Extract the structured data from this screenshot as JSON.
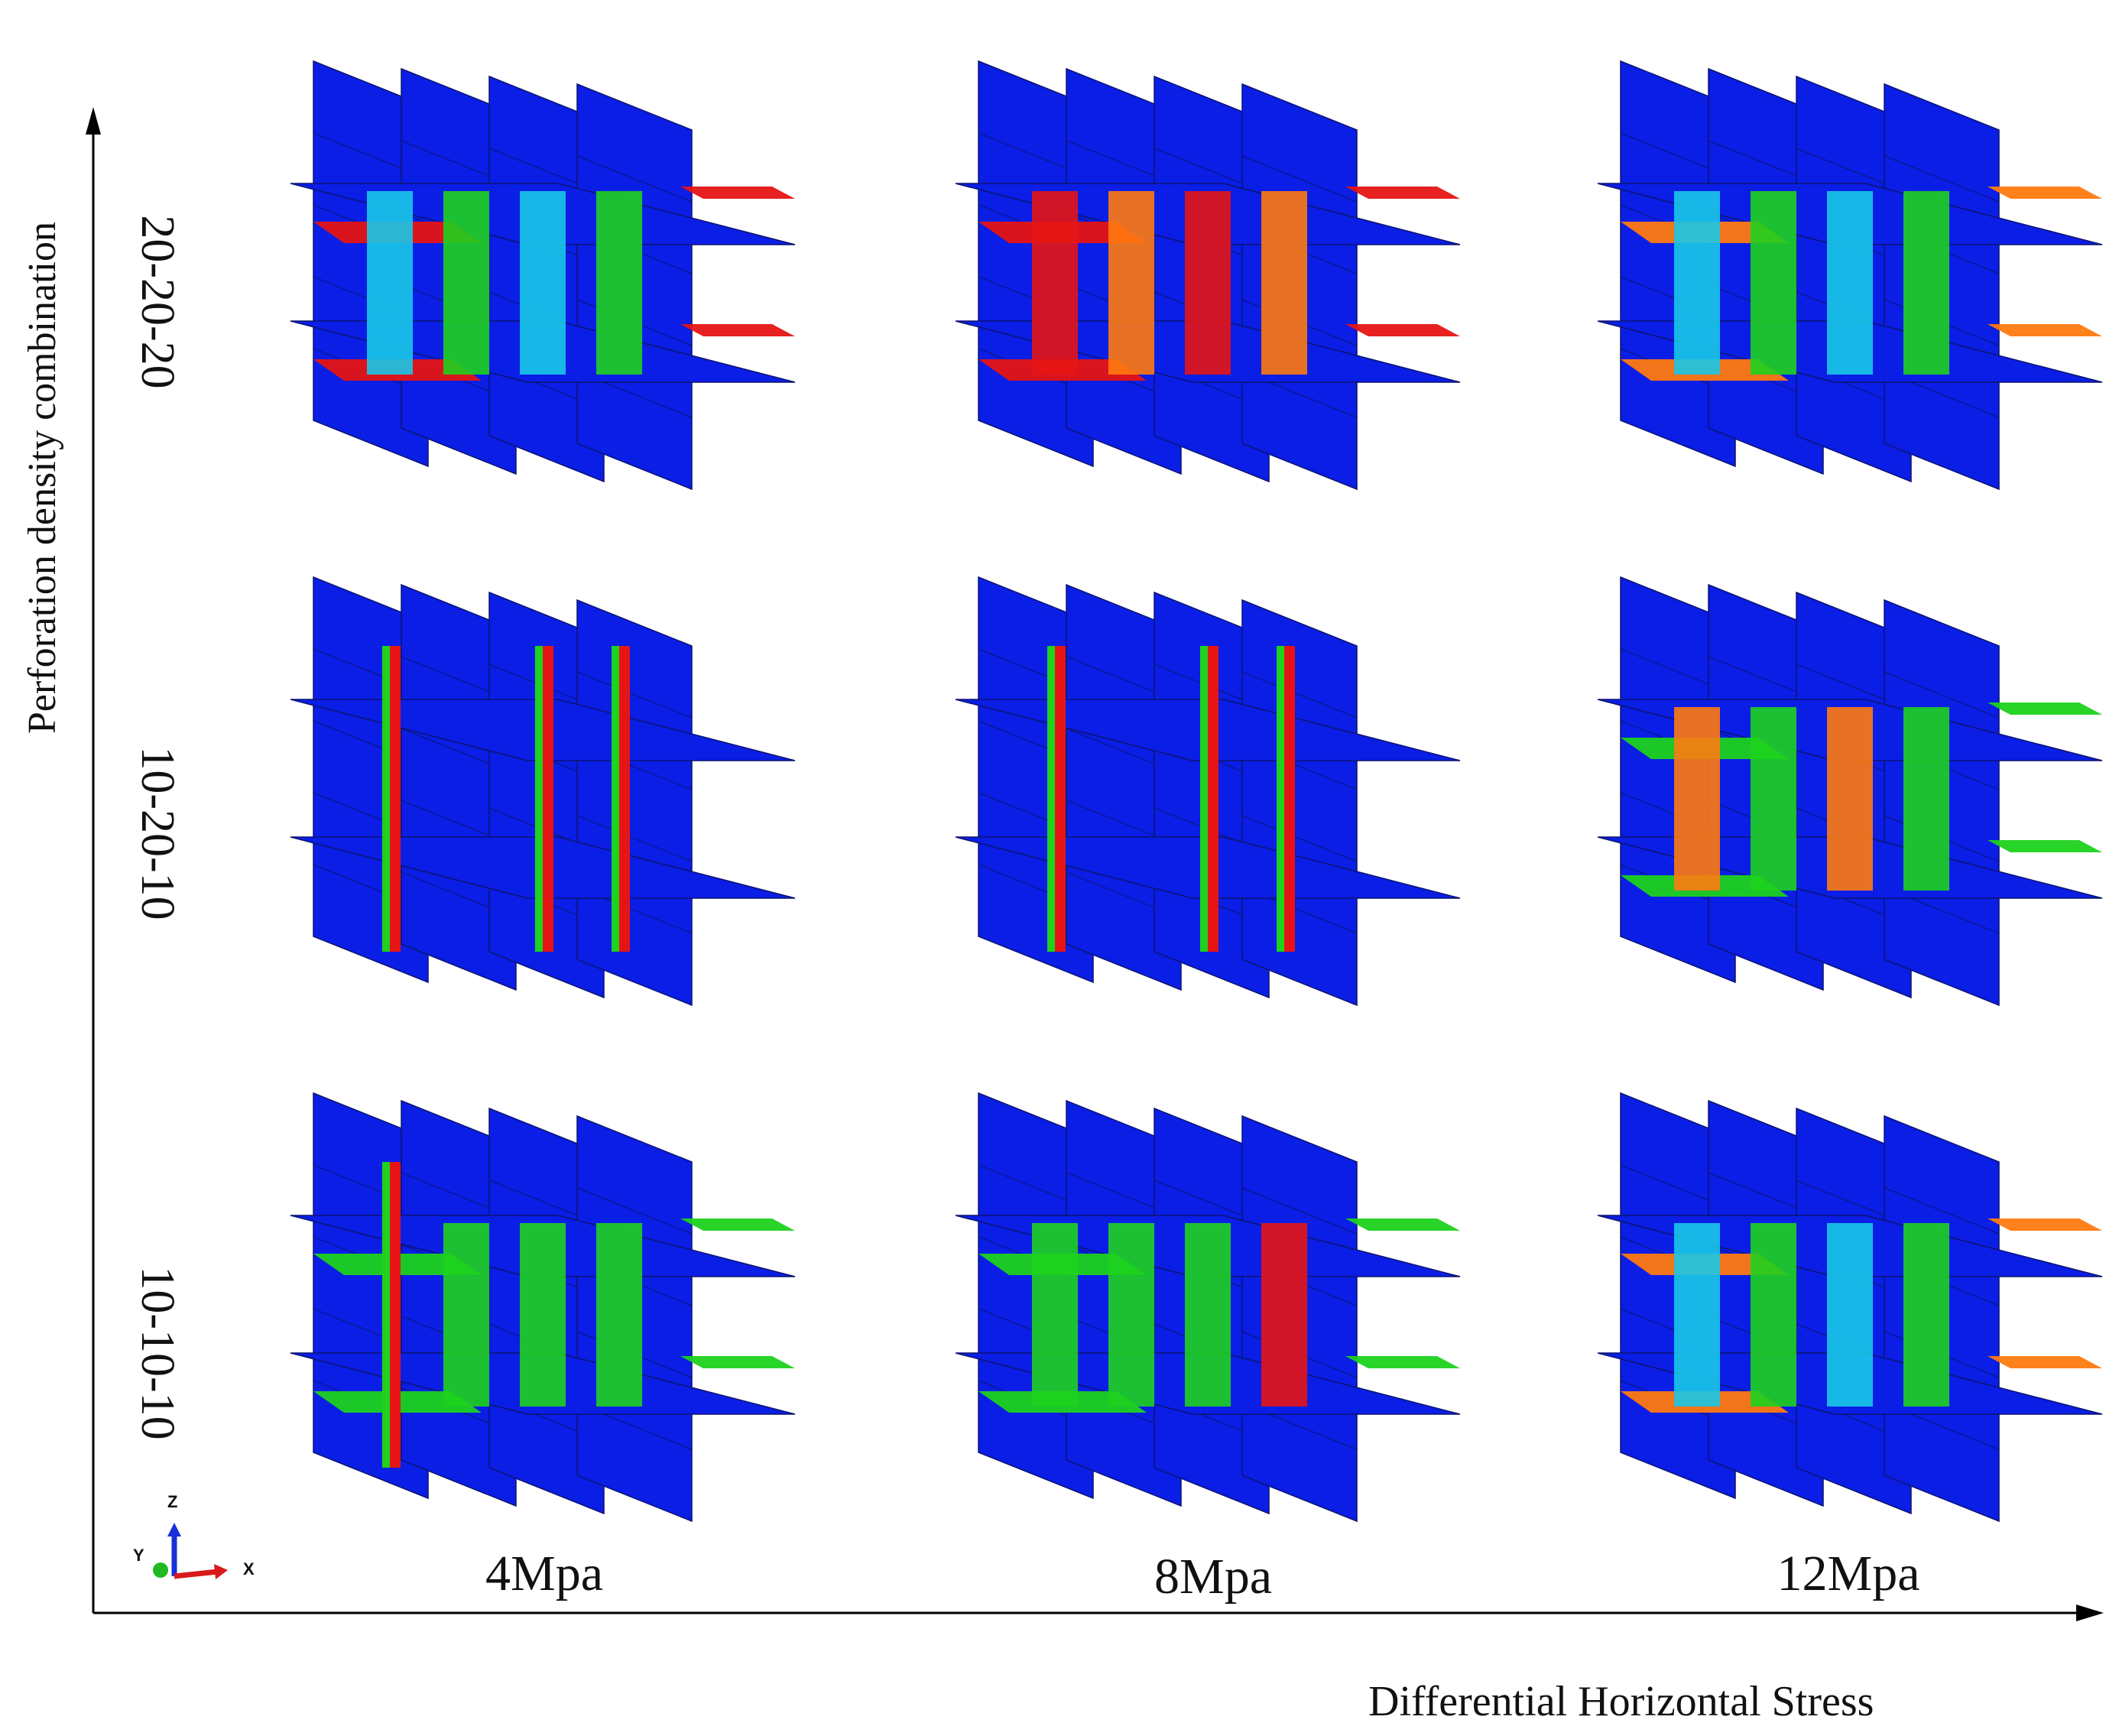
{
  "axes": {
    "y_title": "Perforation density combination",
    "x_title": "Differential Horizontal Stress"
  },
  "columns": [
    {
      "label": "4Mpa"
    },
    {
      "label": "8Mpa"
    },
    {
      "label": "12Mpa"
    }
  ],
  "rows": [
    {
      "label": "20-20-20"
    },
    {
      "label": "10-20-10"
    },
    {
      "label": "10-10-10"
    }
  ],
  "triad": {
    "z": "Z",
    "y": "Y",
    "x": "X"
  },
  "colors": {
    "frac_blue": "#0a1ee6",
    "green": "#1ed21e",
    "red": "#e61414",
    "orange": "#ff7a10",
    "cyan": "#18c8e8",
    "mesh": "#0c1470"
  },
  "panels": [
    {
      "row": 0,
      "col": 0,
      "vertical_fill": [
        "cyan",
        "green",
        "cyan",
        "green"
      ],
      "wing_fill": "red"
    },
    {
      "row": 0,
      "col": 1,
      "vertical_fill": [
        "red",
        "orange",
        "red",
        "orange"
      ],
      "wing_fill": "red"
    },
    {
      "row": 0,
      "col": 2,
      "vertical_fill": [
        "cyan",
        "green",
        "cyan",
        "green"
      ],
      "wing_fill": "orange"
    },
    {
      "row": 1,
      "col": 0,
      "vertical_fill": [
        "redline",
        "none",
        "redline",
        "redline"
      ],
      "wing_fill": "none"
    },
    {
      "row": 1,
      "col": 1,
      "vertical_fill": [
        "redline",
        "none",
        "redline",
        "redline"
      ],
      "wing_fill": "none"
    },
    {
      "row": 1,
      "col": 2,
      "vertical_fill": [
        "orange",
        "green",
        "orange",
        "green"
      ],
      "wing_fill": "green"
    },
    {
      "row": 2,
      "col": 0,
      "vertical_fill": [
        "redline",
        "green",
        "green",
        "green"
      ],
      "wing_fill": "green"
    },
    {
      "row": 2,
      "col": 1,
      "vertical_fill": [
        "green",
        "green",
        "green",
        "red"
      ],
      "wing_fill": "green"
    },
    {
      "row": 2,
      "col": 2,
      "vertical_fill": [
        "cyan",
        "green",
        "cyan",
        "green"
      ],
      "wing_fill": "orange"
    }
  ]
}
